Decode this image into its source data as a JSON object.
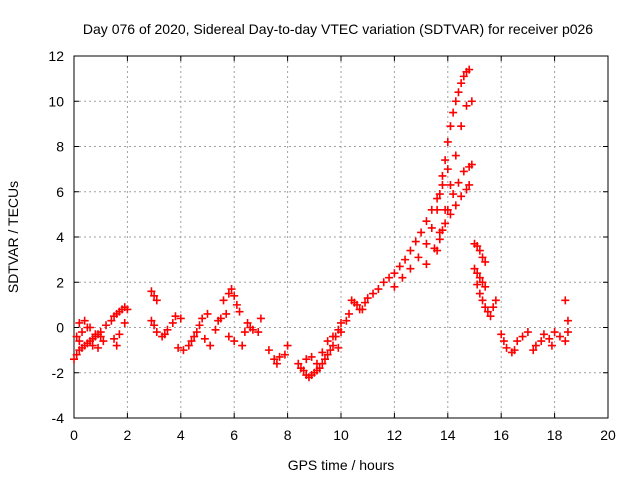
{
  "chart_data": {
    "type": "scatter",
    "title": "Day 076 of 2020, Sidereal Day-to-day VTEC variation (SDTVAR) for receiver p026",
    "xlabel": "GPS time / hours",
    "ylabel": "SDTVAR / TECUs",
    "xlim": [
      0,
      20
    ],
    "ylim": [
      -4,
      12
    ],
    "xticks": [
      0,
      2,
      4,
      6,
      8,
      10,
      12,
      14,
      16,
      18,
      20
    ],
    "yticks": [
      -4,
      -2,
      0,
      2,
      4,
      6,
      8,
      10,
      12
    ],
    "grid": true,
    "marker": "+",
    "color": "#ff0000",
    "series": [
      {
        "name": "SDTVAR",
        "x": [
          0.0,
          0.1,
          0.2,
          0.3,
          0.4,
          0.5,
          0.6,
          0.7,
          0.8,
          0.9,
          1.0,
          0.1,
          0.2,
          0.3,
          0.5,
          0.7,
          0.9,
          1.1,
          0.2,
          0.4,
          0.6,
          0.8,
          1.0,
          1.2,
          1.4,
          1.5,
          1.6,
          1.7,
          1.8,
          1.9,
          2.0,
          1.5,
          1.7,
          1.9,
          1.6,
          2.9,
          3.0,
          3.1,
          2.9,
          3.0,
          3.1,
          3.3,
          3.4,
          3.5,
          3.7,
          3.8,
          4.0,
          3.9,
          4.1,
          4.3,
          4.4,
          4.5,
          4.6,
          4.7,
          4.8,
          5.0,
          5.1,
          4.9,
          5.3,
          5.4,
          5.5,
          5.7,
          5.6,
          5.8,
          5.9,
          6.0,
          6.1,
          6.2,
          5.8,
          6.0,
          6.3,
          6.4,
          6.5,
          6.6,
          6.7,
          6.9,
          7.0,
          7.3,
          7.5,
          7.6,
          7.7,
          7.9,
          8.0,
          8.4,
          8.5,
          8.6,
          8.7,
          8.8,
          8.9,
          9.0,
          9.1,
          9.2,
          9.3,
          9.4,
          9.5,
          9.6,
          9.7,
          9.8,
          9.9,
          10.0,
          8.7,
          8.9,
          9.1,
          9.3,
          9.5,
          9.7,
          9.9,
          10.0,
          10.2,
          10.3,
          10.4,
          10.5,
          10.6,
          10.7,
          10.8,
          10.9,
          11.0,
          11.2,
          11.4,
          11.6,
          11.8,
          12.0,
          12.2,
          12.4,
          12.6,
          12.8,
          13.0,
          13.2,
          13.4,
          13.6,
          13.8,
          14.0,
          12.0,
          12.3,
          12.6,
          12.9,
          13.2,
          13.4,
          13.6,
          13.7,
          13.8,
          13.9,
          14.0,
          14.1,
          14.2,
          14.3,
          14.4,
          14.5,
          14.6,
          14.7,
          14.8,
          13.2,
          13.5,
          13.7,
          13.9,
          14.1,
          14.3,
          14.5,
          14.7,
          14.9,
          13.6,
          13.8,
          14.0,
          14.2,
          14.4,
          14.6,
          14.8,
          14.9,
          13.7,
          13.9,
          14.1,
          14.3,
          14.5,
          14.7,
          14.8,
          15.0,
          15.1,
          15.2,
          15.3,
          15.4,
          15.0,
          15.1,
          15.2,
          15.3,
          15.4,
          15.1,
          15.2,
          15.3,
          15.4,
          15.5,
          15.6,
          15.7,
          15.8,
          16.0,
          16.1,
          16.2,
          16.4,
          16.5,
          16.6,
          16.8,
          17.0,
          17.2,
          17.3,
          17.5,
          17.6,
          17.8,
          17.9,
          18.0,
          18.2,
          18.4,
          18.5,
          18.4,
          18.5
        ],
        "y": [
          -1.4,
          -1.2,
          -1.0,
          -0.9,
          -0.8,
          -0.7,
          -0.6,
          -0.5,
          -0.4,
          -0.3,
          -0.2,
          -0.4,
          -0.6,
          -0.2,
          0.0,
          -0.8,
          -0.9,
          -0.6,
          0.2,
          0.3,
          0.0,
          -0.3,
          -0.4,
          0.1,
          0.3,
          0.5,
          0.6,
          0.7,
          0.8,
          0.9,
          0.8,
          -0.5,
          -0.3,
          0.2,
          -0.8,
          1.6,
          1.4,
          1.2,
          0.3,
          0.1,
          -0.2,
          -0.4,
          -0.3,
          -0.1,
          0.2,
          0.5,
          0.4,
          -0.9,
          -1.0,
          -0.8,
          -0.6,
          -0.4,
          -0.2,
          0.1,
          0.4,
          0.6,
          -0.8,
          -0.5,
          -0.1,
          0.3,
          0.4,
          0.6,
          1.2,
          1.5,
          1.7,
          1.4,
          1.0,
          0.7,
          -0.4,
          -0.6,
          -0.8,
          -0.2,
          0.2,
          0.0,
          -0.1,
          -0.2,
          0.4,
          -1.0,
          -1.4,
          -1.6,
          -1.3,
          -1.2,
          -0.8,
          -1.6,
          -1.8,
          -1.9,
          -2.1,
          -2.2,
          -2.1,
          -2.0,
          -1.9,
          -1.8,
          -1.6,
          -1.4,
          -1.2,
          -1.0,
          -0.8,
          -0.4,
          -0.1,
          0.2,
          -1.4,
          -1.3,
          -1.6,
          -1.1,
          -0.6,
          -0.4,
          -0.9,
          -0.2,
          0.3,
          0.6,
          1.2,
          1.1,
          1.0,
          0.8,
          0.8,
          1.1,
          1.3,
          1.5,
          1.7,
          2.0,
          2.2,
          2.4,
          2.7,
          3.0,
          3.4,
          3.8,
          4.2,
          4.7,
          5.2,
          5.7,
          6.3,
          7.0,
          1.8,
          2.2,
          2.6,
          3.1,
          3.7,
          4.4,
          5.2,
          5.9,
          6.7,
          7.4,
          8.2,
          8.9,
          9.5,
          10.0,
          10.4,
          10.8,
          11.1,
          11.3,
          11.4,
          2.8,
          3.5,
          4.2,
          5.2,
          6.3,
          7.6,
          8.9,
          9.8,
          10.0,
          3.4,
          4.3,
          5.2,
          5.9,
          6.4,
          6.9,
          7.1,
          7.2,
          3.9,
          4.6,
          5.0,
          5.4,
          5.8,
          6.1,
          6.3,
          3.7,
          3.6,
          3.4,
          3.1,
          2.9,
          2.6,
          2.4,
          2.2,
          2.0,
          1.8,
          1.9,
          1.5,
          1.2,
          0.9,
          0.7,
          0.5,
          0.9,
          1.2,
          -0.3,
          -0.6,
          -0.9,
          -1.1,
          -1.0,
          -0.6,
          -0.4,
          -0.2,
          -1.0,
          -0.8,
          -0.6,
          -0.3,
          -0.5,
          -0.8,
          -0.2,
          -0.4,
          -0.6,
          -0.2,
          1.2,
          0.3
        ]
      }
    ]
  }
}
